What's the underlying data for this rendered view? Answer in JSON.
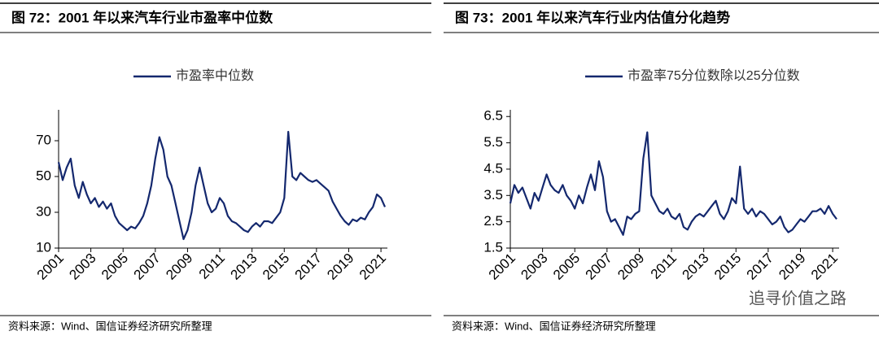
{
  "chart_data": [
    {
      "type": "line",
      "title": "图 72：2001 年以来汽车行业市盈率中位数",
      "source": "资料来源：Wind、国信证券经济研究所整理",
      "x": [
        2001,
        2001.25,
        2001.5,
        2001.75,
        2002,
        2002.25,
        2002.5,
        2002.75,
        2003,
        2003.25,
        2003.5,
        2003.75,
        2004,
        2004.25,
        2004.5,
        2004.75,
        2005,
        2005.25,
        2005.5,
        2005.75,
        2006,
        2006.25,
        2006.5,
        2006.75,
        2007,
        2007.25,
        2007.5,
        2007.75,
        2008,
        2008.25,
        2008.5,
        2008.75,
        2009,
        2009.25,
        2009.5,
        2009.75,
        2010,
        2010.25,
        2010.5,
        2010.75,
        2011,
        2011.25,
        2011.5,
        2011.75,
        2012,
        2012.25,
        2012.5,
        2012.75,
        2013,
        2013.25,
        2013.5,
        2013.75,
        2014,
        2014.25,
        2014.5,
        2014.75,
        2015,
        2015.25,
        2015.5,
        2015.75,
        2016,
        2016.25,
        2016.5,
        2016.75,
        2017,
        2017.25,
        2017.5,
        2017.75,
        2018,
        2018.25,
        2018.5,
        2018.75,
        2019,
        2019.25,
        2019.5,
        2019.75,
        2020,
        2020.25,
        2020.5,
        2020.75,
        2021,
        2021.25
      ],
      "series": [
        {
          "name": "市盈率中位数",
          "color": "#14286e",
          "values": [
            58,
            48,
            55,
            60,
            45,
            38,
            47,
            40,
            35,
            38,
            33,
            36,
            32,
            35,
            28,
            24,
            22,
            20,
            22,
            21,
            24,
            28,
            35,
            45,
            60,
            72,
            65,
            50,
            45,
            35,
            25,
            15,
            20,
            30,
            45,
            55,
            45,
            35,
            30,
            32,
            38,
            35,
            28,
            25,
            24,
            22,
            20,
            19,
            22,
            24,
            22,
            25,
            25,
            24,
            27,
            30,
            38,
            75,
            50,
            48,
            52,
            50,
            48,
            47,
            48,
            46,
            44,
            42,
            36,
            32,
            28,
            25,
            23,
            26,
            25,
            27,
            26,
            30,
            33,
            40,
            38,
            33
          ]
        }
      ],
      "xlim": [
        2001,
        2021.4
      ],
      "xticks": [
        2001,
        2003,
        2005,
        2007,
        2009,
        2011,
        2013,
        2015,
        2017,
        2019,
        2021
      ],
      "ylim": [
        10,
        85
      ],
      "yticks": [
        10,
        30,
        50,
        70
      ],
      "legend": "top"
    },
    {
      "type": "line",
      "title": "图 73：2001 年以来汽车行业内估值分化趋势",
      "source": "资料来源：Wind、国信证券经济研究所整理",
      "x": [
        2001,
        2001.25,
        2001.5,
        2001.75,
        2002,
        2002.25,
        2002.5,
        2002.75,
        2003,
        2003.25,
        2003.5,
        2003.75,
        2004,
        2004.25,
        2004.5,
        2004.75,
        2005,
        2005.25,
        2005.5,
        2005.75,
        2006,
        2006.25,
        2006.5,
        2006.75,
        2007,
        2007.25,
        2007.5,
        2007.75,
        2008,
        2008.25,
        2008.5,
        2008.75,
        2009,
        2009.25,
        2009.5,
        2009.75,
        2010,
        2010.25,
        2010.5,
        2010.75,
        2011,
        2011.25,
        2011.5,
        2011.75,
        2012,
        2012.25,
        2012.5,
        2012.75,
        2013,
        2013.25,
        2013.5,
        2013.75,
        2014,
        2014.25,
        2014.5,
        2014.75,
        2015,
        2015.25,
        2015.5,
        2015.75,
        2016,
        2016.25,
        2016.5,
        2016.75,
        2017,
        2017.25,
        2017.5,
        2017.75,
        2018,
        2018.25,
        2018.5,
        2018.75,
        2019,
        2019.25,
        2019.5,
        2019.75,
        2020,
        2020.25,
        2020.5,
        2020.75,
        2021,
        2021.25
      ],
      "series": [
        {
          "name": "市盈率75分位数除以25分位数",
          "color": "#14286e",
          "values": [
            3.2,
            3.9,
            3.6,
            3.8,
            3.4,
            3.0,
            3.6,
            3.3,
            3.8,
            4.3,
            3.9,
            3.7,
            3.6,
            3.9,
            3.5,
            3.3,
            3.0,
            3.5,
            3.2,
            3.8,
            4.3,
            3.7,
            4.8,
            4.2,
            2.9,
            2.5,
            2.6,
            2.3,
            2.0,
            2.7,
            2.6,
            2.8,
            2.9,
            4.9,
            5.9,
            3.5,
            3.2,
            2.9,
            2.8,
            3.0,
            2.7,
            2.6,
            2.8,
            2.3,
            2.2,
            2.5,
            2.7,
            2.8,
            2.7,
            2.9,
            3.1,
            3.3,
            2.8,
            2.6,
            2.9,
            3.4,
            3.2,
            4.6,
            3.0,
            2.8,
            3.0,
            2.7,
            2.9,
            2.8,
            2.6,
            2.4,
            2.5,
            2.7,
            2.3,
            2.1,
            2.2,
            2.4,
            2.6,
            2.5,
            2.7,
            2.9,
            2.9,
            3.0,
            2.8,
            3.1,
            2.8,
            2.6
          ]
        }
      ],
      "xlim": [
        2001,
        2021.4
      ],
      "xticks": [
        2001,
        2003,
        2005,
        2007,
        2009,
        2011,
        2013,
        2015,
        2017,
        2019,
        2021
      ],
      "ylim": [
        1.5,
        6.6
      ],
      "yticks": [
        1.5,
        2.5,
        3.5,
        4.5,
        5.5,
        6.5
      ],
      "legend": "top"
    }
  ],
  "watermark": "追寻价值之路"
}
